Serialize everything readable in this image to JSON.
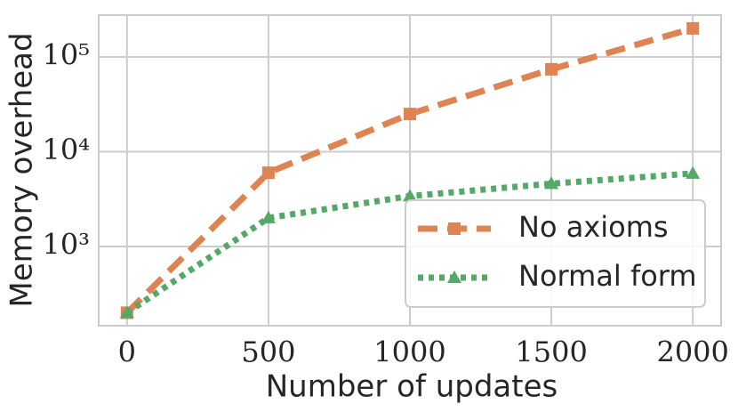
{
  "chart_data": {
    "type": "line",
    "xlabel": "Number of updates",
    "ylabel": "Memory overhead",
    "x": [
      0,
      500,
      1000,
      1500,
      2000
    ],
    "series": [
      {
        "name": "No axioms",
        "color": "#dd8452",
        "marker": "square",
        "linestyle": "dashed",
        "values": [
          200,
          6000,
          25000,
          74000,
          200000
        ]
      },
      {
        "name": "Normal form",
        "color": "#55a868",
        "marker": "triangle",
        "linestyle": "dotted",
        "values": [
          200,
          2000,
          3400,
          4600,
          5900
        ]
      }
    ],
    "xlim": [
      -100,
      2100
    ],
    "xticks": [
      0,
      500,
      1000,
      1500,
      2000
    ],
    "ylim": [
      146,
      276000
    ],
    "yscale": "log",
    "yticks": [
      {
        "value": 1000,
        "label": "10³"
      },
      {
        "value": 10000,
        "label": "10⁴"
      },
      {
        "value": 100000,
        "label": "10⁵"
      }
    ],
    "grid": true,
    "legend": "lower right"
  }
}
